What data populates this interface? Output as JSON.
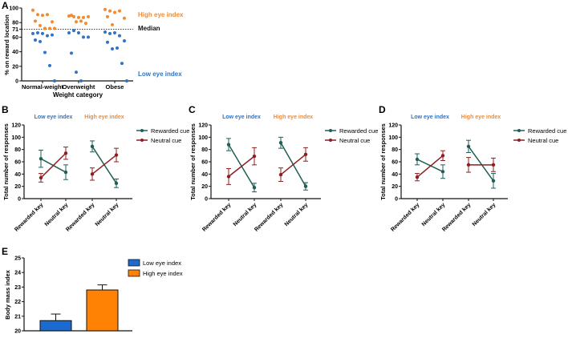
{
  "colors": {
    "orange": "#F28B30",
    "blue": "#2F74C8",
    "green": "#1E5F56",
    "red": "#8C1F22",
    "bar_blue": "#1A6ACF",
    "bar_orange": "#FF8205",
    "axis": "#111111"
  },
  "chart_data": [
    {
      "panel": "A",
      "type": "scatter",
      "ylabel": "% on reward location",
      "xlabel": "Weight category",
      "categories": [
        "Normal-weight",
        "Overweight",
        "Obese"
      ],
      "ylim": [
        0,
        100
      ],
      "yticks": [
        "0",
        "20",
        "40",
        "60",
        "71",
        "80",
        "100"
      ],
      "median": 71,
      "annotations": {
        "high": "High eye index",
        "median": "Median",
        "low": "Low eye index"
      },
      "series": [
        {
          "name": "High eye index",
          "points": [
            [
              97,
              91,
              90,
              91,
              81,
              82,
              76,
              72,
              72,
              72
            ],
            [
              89,
              88,
              87,
              87,
              88,
              90,
              81,
              82,
              79
            ],
            [
              98,
              96,
              94,
              96,
              86,
              88,
              77
            ]
          ]
        },
        {
          "name": "Low eye index",
          "points": [
            [
              65,
              66,
              65,
              62,
              63,
              56,
              54,
              39,
              21,
              0
            ],
            [
              66,
              69,
              66,
              60,
              60,
              38,
              12,
              0
            ],
            [
              67,
              65,
              66,
              62,
              55,
              53,
              44,
              45,
              24,
              0
            ]
          ]
        }
      ]
    },
    {
      "panel": "B",
      "type": "line",
      "group_labels": [
        "Low eye index",
        "High eye index"
      ],
      "categories": [
        "Rewarded key",
        "Neutral key",
        "Rewarded key",
        "Neutral key"
      ],
      "ylabel": "Total number of responses",
      "ylim": [
        0,
        120
      ],
      "yticks": [
        "0",
        "20",
        "40",
        "60",
        "80",
        "100",
        "120"
      ],
      "series": [
        {
          "name": "Rewarded cue",
          "values": [
            65,
            43,
            85,
            25
          ],
          "errors": [
            14,
            12,
            9,
            7
          ]
        },
        {
          "name": "Neutral cue",
          "values": [
            34,
            74,
            40,
            71
          ],
          "errors": [
            7,
            10,
            10,
            11
          ]
        }
      ]
    },
    {
      "panel": "C",
      "type": "line",
      "group_labels": [
        "Low eye index",
        "High eye index"
      ],
      "categories": [
        "Rewarded key",
        "Neutral key",
        "Rewarded key",
        "Neutral key"
      ],
      "ylabel": "Total number of responses",
      "ylim": [
        0,
        120
      ],
      "yticks": [
        "0",
        "20",
        "40",
        "60",
        "80",
        "100",
        "120"
      ],
      "series": [
        {
          "name": "Rewarded cue",
          "values": [
            88,
            18,
            91,
            20
          ],
          "errors": [
            10,
            7,
            9,
            6
          ]
        },
        {
          "name": "Neutral cue",
          "values": [
            36,
            69,
            39,
            72
          ],
          "errors": [
            13,
            14,
            11,
            11
          ]
        }
      ]
    },
    {
      "panel": "D",
      "type": "line",
      "group_labels": [
        "Low eye index",
        "High eye index"
      ],
      "categories": [
        "Rewarded key",
        "Neutral key",
        "Rewarded key",
        "Neutral key"
      ],
      "ylabel": "Total number of responses",
      "ylim": [
        0,
        120
      ],
      "yticks": [
        "0",
        "20",
        "40",
        "60",
        "80",
        "100",
        "120"
      ],
      "series": [
        {
          "name": "Rewarded cue",
          "values": [
            64,
            44,
            85,
            29
          ],
          "errors": [
            9,
            11,
            10,
            12
          ]
        },
        {
          "name": "Neutral cue",
          "values": [
            35,
            70,
            55,
            55
          ],
          "errors": [
            6,
            8,
            12,
            11
          ]
        }
      ]
    },
    {
      "panel": "E",
      "type": "bar",
      "ylabel": "Body mass index",
      "ylim": [
        20,
        25
      ],
      "yticks": [
        "20",
        "21",
        "22",
        "23",
        "24",
        "25"
      ],
      "categories": [
        "Low eye index",
        "High eye index"
      ],
      "values": [
        20.7,
        22.8
      ],
      "errors": [
        0.45,
        0.35
      ]
    }
  ]
}
